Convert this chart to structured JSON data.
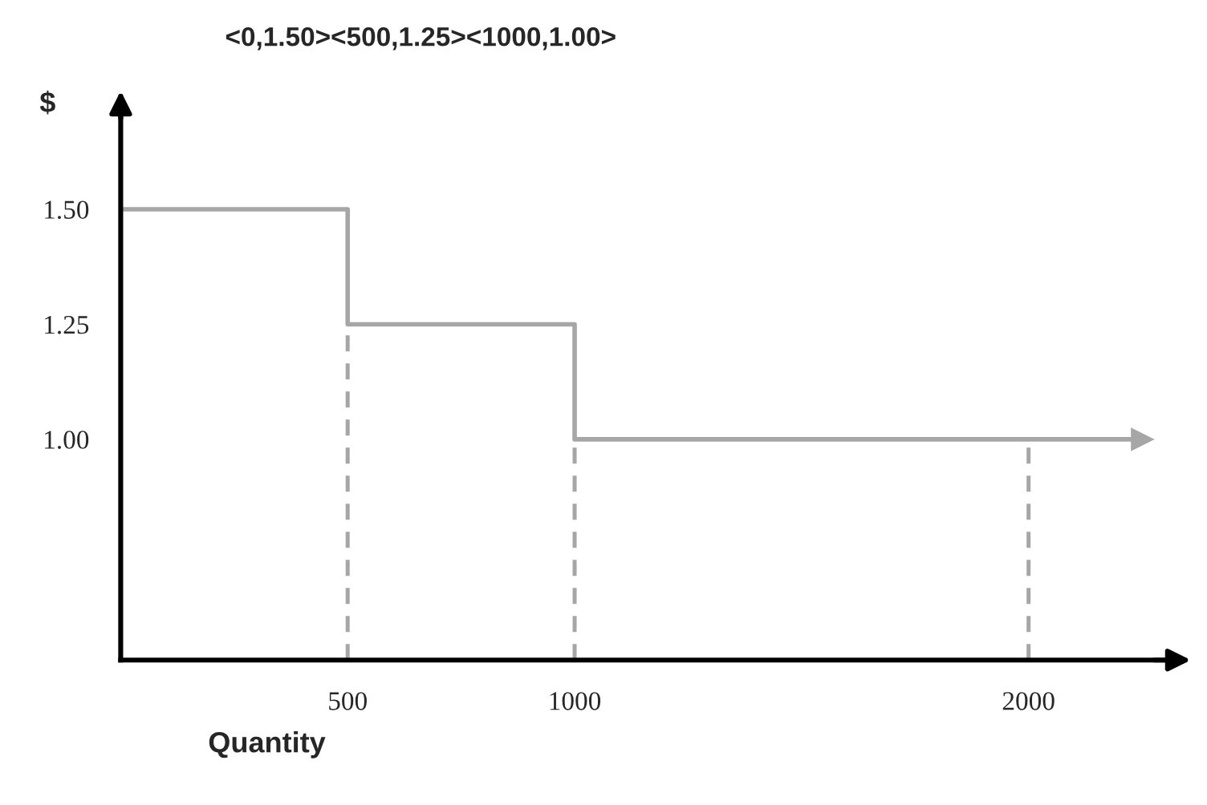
{
  "chart_data": {
    "type": "step",
    "title": "<0,1.50><500,1.25><1000,1.00>",
    "xlabel": "Quantity",
    "ylabel": "$",
    "x": [
      0,
      500,
      1000,
      2250
    ],
    "series": [
      {
        "color": "#a6a6a6",
        "values": [
          1.5,
          1.25,
          1.0,
          1.0
        ]
      }
    ],
    "xlim": [
      0,
      2300
    ],
    "ylim": [
      0.52,
      1.71
    ],
    "xticks": [
      500,
      1000,
      2000
    ],
    "yticks": [
      {
        "value": 1.0,
        "label": "1.00"
      },
      {
        "value": 1.25,
        "label": "1.25"
      },
      {
        "value": 1.5,
        "label": "1.50"
      }
    ],
    "ref_lines": [
      {
        "axis": "x",
        "value": 500,
        "color": "#a6a6a6",
        "line_style": "dashed"
      },
      {
        "axis": "x",
        "value": 1000,
        "color": "#a6a6a6",
        "line_style": "dashed"
      },
      {
        "axis": "x",
        "value": 2000,
        "color": "#a6a6a6",
        "line_style": "dashed"
      }
    ],
    "grid": false
  }
}
